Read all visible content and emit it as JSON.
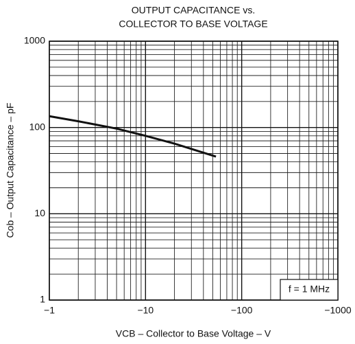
{
  "chart_data": {
    "type": "line",
    "title": [
      "OUTPUT CAPACITANCE vs.",
      "COLLECTOR TO BASE VOLTAGE"
    ],
    "x_label": "VCB – Collector to Base Voltage – V",
    "y_label": "Cob – Output Capacitance – pF",
    "annotation": "f = 1 MHz",
    "xscale": "log",
    "yscale": "log",
    "grid": true,
    "minor_grid": true,
    "xlim": [
      -1,
      -1000
    ],
    "xticks": [
      {
        "value": -1,
        "label": "−1"
      },
      {
        "value": -10,
        "label": "−10"
      },
      {
        "value": -100,
        "label": "−100"
      },
      {
        "value": -1000,
        "label": "−1000"
      }
    ],
    "ylim": [
      1,
      1000
    ],
    "yticks": [
      1,
      10,
      100,
      1000
    ],
    "series": [
      {
        "color": "#111111",
        "x": [
          -1,
          -2,
          -5,
          -10,
          -20,
          -54
        ],
        "values": [
          135,
          118,
          97,
          80,
          65,
          46
        ]
      }
    ]
  }
}
